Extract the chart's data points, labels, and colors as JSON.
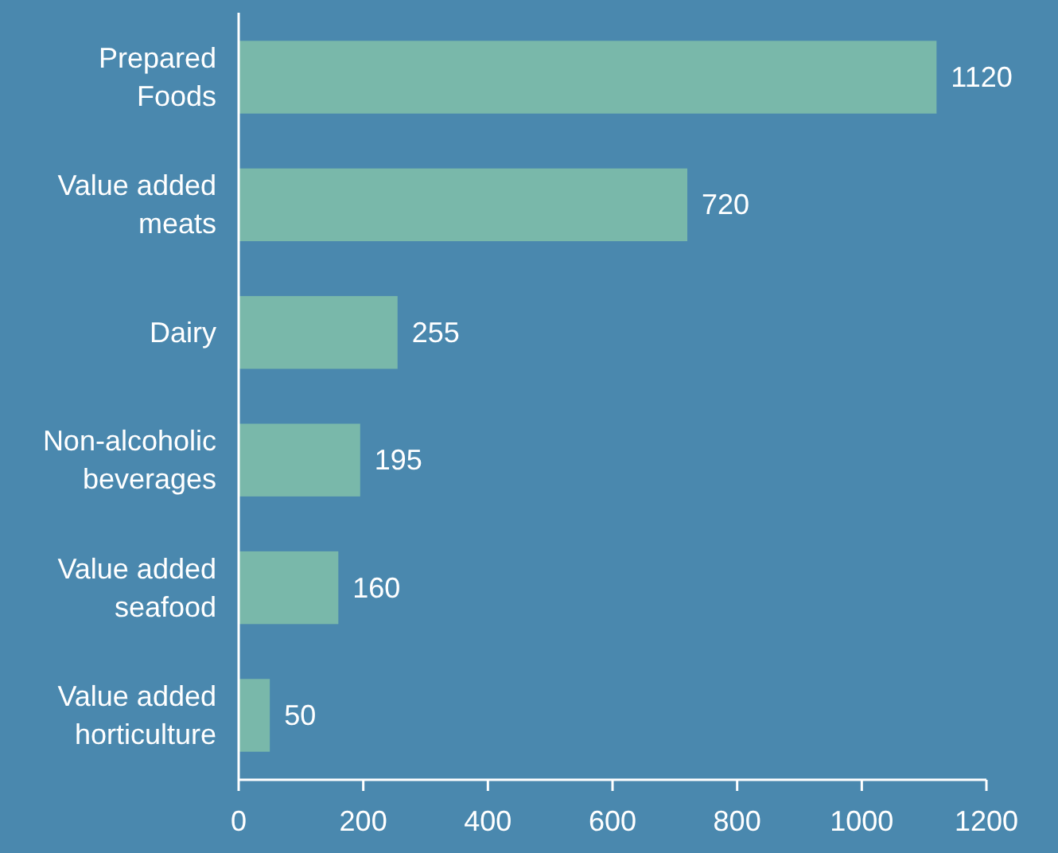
{
  "chart_data": {
    "type": "bar",
    "orientation": "horizontal",
    "categories": [
      "Prepared Foods",
      "Value added meats",
      "Dairy",
      "Non-alcoholic beverages",
      "Value added seafood",
      "Value added horticulture"
    ],
    "values": [
      1120,
      720,
      255,
      195,
      160,
      50
    ],
    "color": "#79b8aa",
    "xlim": [
      0,
      1200
    ],
    "xticks": [
      0,
      200,
      400,
      600,
      800,
      1000,
      1200
    ],
    "data_labels": true,
    "grid": false
  }
}
